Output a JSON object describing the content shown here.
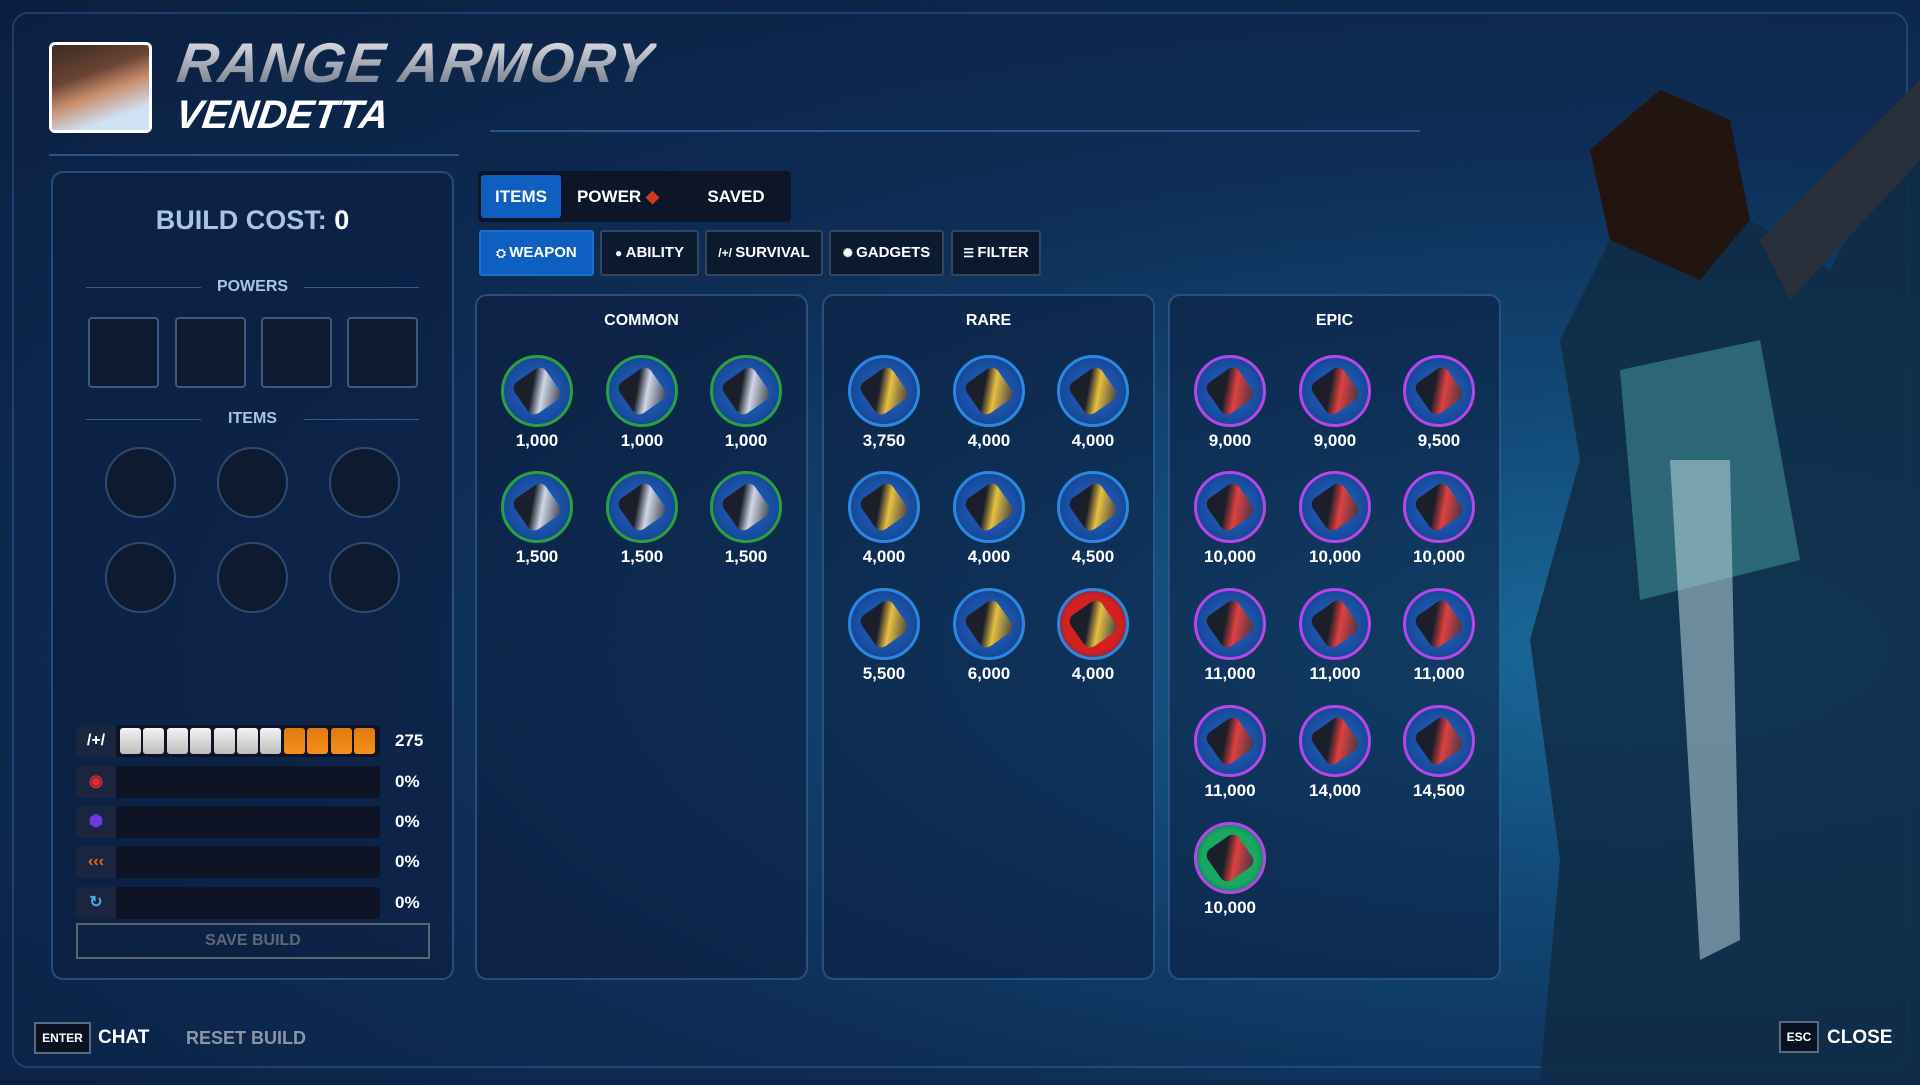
{
  "header": {
    "title": "RANGE ARMORY",
    "hero_name": "VENDETTA"
  },
  "build": {
    "cost_label": "BUILD COST:",
    "cost_value": "0",
    "powers_label": "POWERS",
    "items_label": "ITEMS",
    "save_label": "SAVE BUILD"
  },
  "stats": [
    {
      "icon": "health-icon",
      "value": "275",
      "health_segments": {
        "white": 7,
        "orange": 4
      },
      "color": "#f08a10"
    },
    {
      "icon": "weapon-power-icon",
      "value": "0%",
      "color": "#e02c2c"
    },
    {
      "icon": "ability-power-icon",
      "value": "0%",
      "color": "#6a3ae0"
    },
    {
      "icon": "attack-speed-icon",
      "value": "0%",
      "color": "#e86a1a"
    },
    {
      "icon": "cooldown-icon",
      "value": "0%",
      "color": "#4aa8e8"
    }
  ],
  "tabs": [
    {
      "label": "ITEMS",
      "active": true
    },
    {
      "label": "POWER",
      "active": false
    },
    {
      "label": "SAVED",
      "active": false
    }
  ],
  "categories": [
    {
      "label": "WEAPON",
      "icon": "weapon-icon",
      "active": true
    },
    {
      "label": "ABILITY",
      "icon": "ability-icon"
    },
    {
      "label": "SURVIVAL",
      "icon": "survival-icon"
    },
    {
      "label": "GADGETS",
      "icon": "gadgets-icon"
    },
    {
      "label": "FILTER",
      "icon": "filter-icon"
    }
  ],
  "columns": [
    {
      "label": "COMMON",
      "ring": "#2aa040",
      "items": [
        "1,000",
        "1,000",
        "1,000",
        "1,500",
        "1,500",
        "1,500"
      ]
    },
    {
      "label": "RARE",
      "ring": "#2a88e0",
      "items": [
        "3,750",
        "4,000",
        "4,000",
        "4,000",
        "4,000",
        "4,500",
        "5,500",
        "6,000",
        "4,000"
      ],
      "special": {
        "8": "#d42020"
      }
    },
    {
      "label": "EPIC",
      "ring": "#b845e8",
      "items": [
        "9,000",
        "9,000",
        "9,500",
        "10,000",
        "10,000",
        "10,000",
        "11,000",
        "11,000",
        "11,000",
        "11,000",
        "14,000",
        "14,500",
        "10,000"
      ],
      "special": {
        "12": "#1aa860"
      }
    }
  ],
  "footer": {
    "chat_key": "ENTER",
    "chat_label": "CHAT",
    "reset_label": "RESET BUILD",
    "close_key": "ESC",
    "close_label": "CLOSE"
  }
}
